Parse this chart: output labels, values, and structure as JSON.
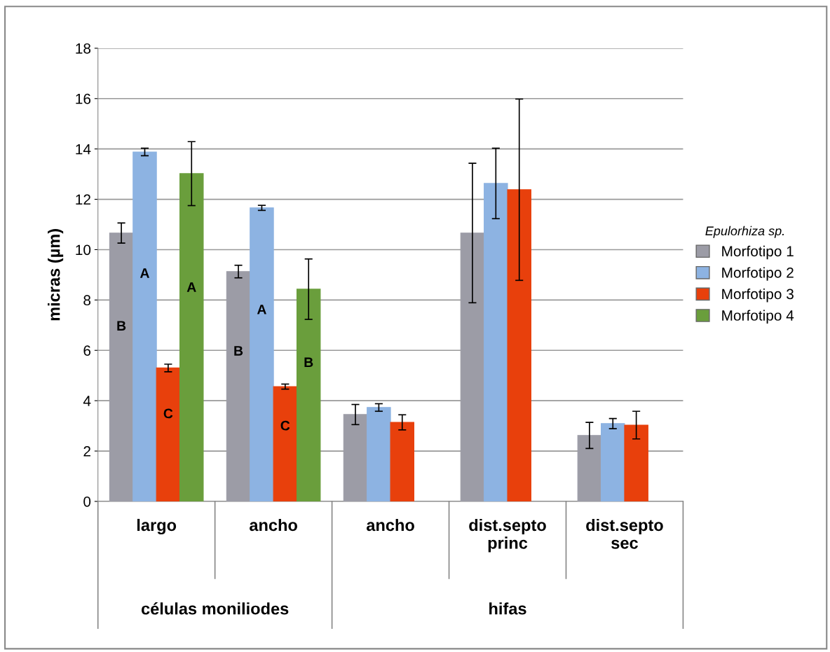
{
  "chart_data": {
    "type": "bar",
    "ylabel": "micras (µm)",
    "legend_title": "Epulorhiza sp.",
    "categories": [
      "largo",
      "ancho",
      "ancho",
      "dist.septo\nprinc",
      "dist.septo\nsec"
    ],
    "annotations": [
      "células moniliodes",
      "hifas"
    ],
    "series": [
      {
        "name": "Morfotipo 1",
        "color": "#9c9ca6",
        "values": [
          10.66,
          9.13,
          3.45,
          10.66,
          2.62
        ],
        "errors": [
          0.4,
          0.25,
          0.4,
          2.77,
          0.52
        ],
        "value_labels": [
          "B",
          "B",
          null,
          null,
          null
        ]
      },
      {
        "name": "Morfotipo 2",
        "color": "#8db3e2",
        "values": [
          13.88,
          11.66,
          3.73,
          12.63,
          3.09
        ],
        "errors": [
          0.15,
          0.1,
          0.15,
          1.4,
          0.2
        ],
        "value_labels": [
          "A",
          "A",
          null,
          null,
          null
        ]
      },
      {
        "name": "Morfotipo 3",
        "color": "#e8400c",
        "values": [
          5.3,
          4.56,
          3.14,
          12.38,
          3.03
        ],
        "errors": [
          0.15,
          0.1,
          0.3,
          3.6,
          0.55
        ],
        "value_labels": [
          "C",
          "C",
          null,
          null,
          null
        ]
      },
      {
        "name": "Morfotipo 4",
        "color": "#6a9e3c",
        "values": [
          13.02,
          8.43,
          null,
          null,
          null
        ],
        "errors": [
          1.27,
          1.2,
          null,
          null,
          null
        ],
        "value_labels": [
          "A",
          "B",
          null,
          null,
          null
        ]
      }
    ],
    "ylim": [
      0,
      18
    ],
    "yticks": [
      0,
      2,
      4,
      6,
      8,
      10,
      12,
      14,
      16,
      18
    ],
    "grid": "y",
    "legend": "right"
  }
}
